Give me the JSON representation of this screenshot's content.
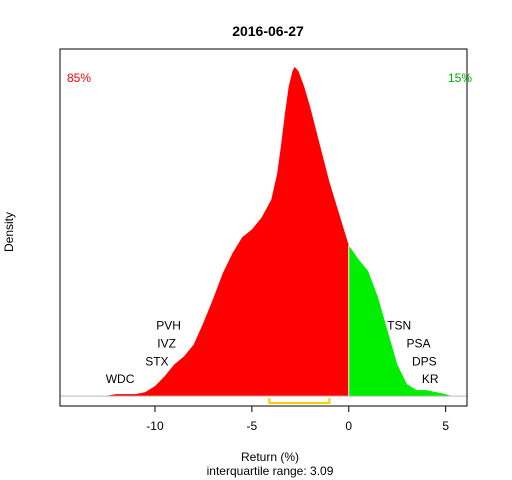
{
  "chart_data": {
    "type": "area",
    "title": "2016-06-27",
    "xlabel": "Return (%)",
    "subtitle": "interquartile range: 3.09",
    "ylabel": "Density",
    "xlim": [
      -14.9,
      6.1
    ],
    "ylim": [
      -0.005,
      0.175
    ],
    "x_ticks": [
      -10,
      -5,
      0,
      5
    ],
    "x_tick_labels": [
      "-10",
      "-5",
      "0",
      "5"
    ],
    "split_at": 0,
    "negative_share_label": "85%",
    "positive_share_label": "15%",
    "colors": {
      "negative": "#ff0000",
      "positive": "#00ee00",
      "iqr": "#ffcc00",
      "frame": "#000000"
    },
    "iqr": [
      -4.1,
      -1.0
    ],
    "density": [
      [
        -12.6,
        0.0
      ],
      [
        -12.0,
        0.001
      ],
      [
        -11.5,
        0.001
      ],
      [
        -11.0,
        0.001
      ],
      [
        -10.5,
        0.002
      ],
      [
        -10.0,
        0.005
      ],
      [
        -9.5,
        0.01
      ],
      [
        -9.0,
        0.016
      ],
      [
        -8.5,
        0.02
      ],
      [
        -8.0,
        0.026
      ],
      [
        -7.5,
        0.037
      ],
      [
        -7.0,
        0.049
      ],
      [
        -6.5,
        0.062
      ],
      [
        -6.0,
        0.072
      ],
      [
        -5.5,
        0.08
      ],
      [
        -5.0,
        0.084
      ],
      [
        -4.5,
        0.09
      ],
      [
        -4.0,
        0.099
      ],
      [
        -3.7,
        0.112
      ],
      [
        -3.5,
        0.126
      ],
      [
        -3.3,
        0.142
      ],
      [
        -3.1,
        0.156
      ],
      [
        -2.9,
        0.164
      ],
      [
        -2.8,
        0.166
      ],
      [
        -2.6,
        0.164
      ],
      [
        -2.3,
        0.156
      ],
      [
        -2.0,
        0.146
      ],
      [
        -1.5,
        0.127
      ],
      [
        -1.0,
        0.108
      ],
      [
        -0.5,
        0.092
      ],
      [
        0.0,
        0.076
      ],
      [
        0.5,
        0.069
      ],
      [
        1.0,
        0.063
      ],
      [
        1.5,
        0.05
      ],
      [
        2.0,
        0.033
      ],
      [
        2.5,
        0.016
      ],
      [
        3.0,
        0.006
      ],
      [
        3.5,
        0.003
      ],
      [
        4.0,
        0.003
      ],
      [
        4.5,
        0.002
      ],
      [
        5.0,
        0.001
      ],
      [
        5.3,
        0.0
      ]
    ],
    "annotations": [
      {
        "text": "WDC",
        "x": -11.8,
        "y": 0.0085
      },
      {
        "text": "STX",
        "x": -9.9,
        "y": 0.0175
      },
      {
        "text": "IVZ",
        "x": -9.4,
        "y": 0.0265
      },
      {
        "text": "PVH",
        "x": -9.3,
        "y": 0.0355
      },
      {
        "text": "TSN",
        "x": 2.6,
        "y": 0.0355
      },
      {
        "text": "PSA",
        "x": 3.6,
        "y": 0.0265
      },
      {
        "text": "DPS",
        "x": 3.9,
        "y": 0.0175
      },
      {
        "text": "KR",
        "x": 4.2,
        "y": 0.0085
      }
    ]
  }
}
